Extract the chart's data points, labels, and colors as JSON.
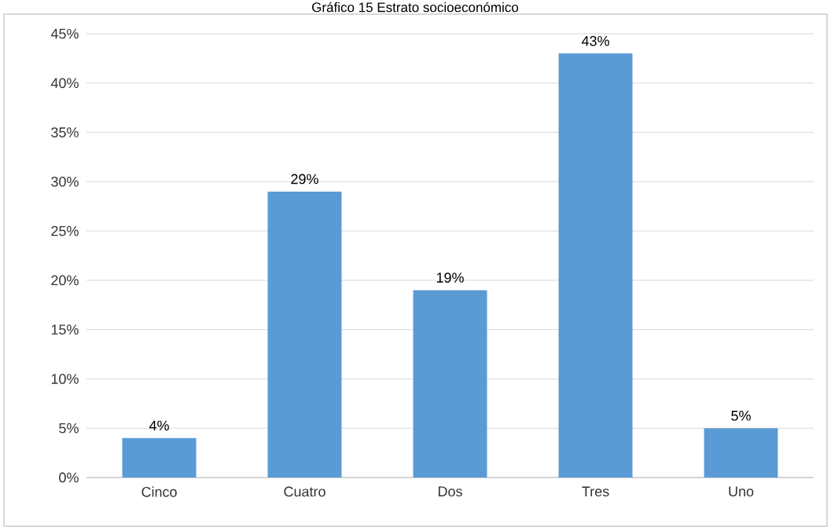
{
  "chart_data": {
    "type": "bar",
    "title": "Gráfico 15 Estrato socioeconómico",
    "categories": [
      "Cinco",
      "Cuatro",
      "Dos",
      "Tres",
      "Uno"
    ],
    "values": [
      4,
      29,
      19,
      43,
      5
    ],
    "value_labels": [
      "4%",
      "29%",
      "19%",
      "43%",
      "5%"
    ],
    "color": "#5b9bd5",
    "ylim": [
      0,
      45
    ],
    "yticks": [
      {
        "value": 0,
        "label": "0%"
      },
      {
        "value": 5,
        "label": "5%"
      },
      {
        "value": 10,
        "label": "10%"
      },
      {
        "value": 15,
        "label": "15%"
      },
      {
        "value": 20,
        "label": "20%"
      },
      {
        "value": 25,
        "label": "25%"
      },
      {
        "value": 30,
        "label": "30%"
      },
      {
        "value": 35,
        "label": "35%"
      },
      {
        "value": 40,
        "label": "40%"
      },
      {
        "value": 45,
        "label": "45%"
      }
    ],
    "grid": "y"
  }
}
